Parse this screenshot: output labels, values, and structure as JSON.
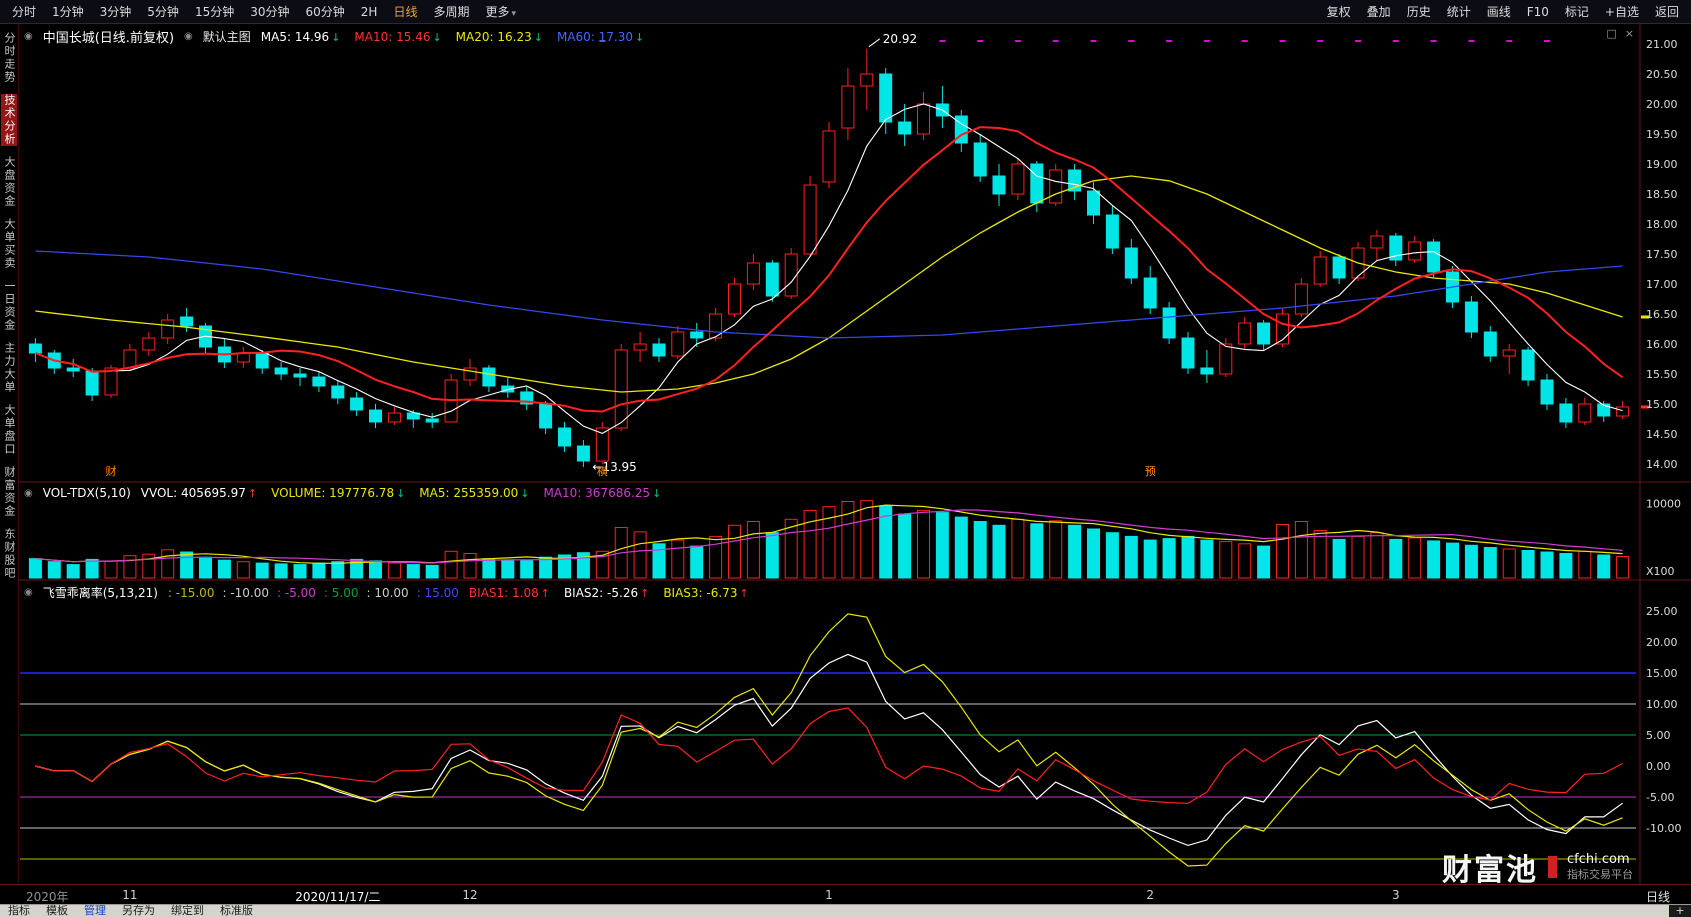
{
  "topbar": {
    "left_items": [
      "分时",
      "1分钟",
      "3分钟",
      "5分钟",
      "15分钟",
      "30分钟",
      "60分钟",
      "2H",
      "日线",
      "多周期",
      "更多"
    ],
    "active_item": "日线",
    "chevron_item": "更多",
    "right_items": [
      "复权",
      "叠加",
      "历史",
      "统计",
      "画线",
      "F10",
      "标记",
      "+自选",
      "返回"
    ]
  },
  "sidebar": {
    "items": [
      "分时走势",
      "技术分析",
      "大盘资金",
      "大单买卖",
      "一日资金",
      "主力大单",
      "大单盘口",
      "财富资金",
      "东财股吧"
    ],
    "active": "技术分析"
  },
  "main_header": {
    "title": "中国长城(日线.前复权)",
    "layout_label": "默认主图",
    "ma_labels": [
      {
        "text": "MA5: 14.96",
        "arrow": "↓",
        "color": "#ffffff",
        "arrow_color": "#00c878"
      },
      {
        "text": "MA10: 15.46",
        "arrow": "↓",
        "color": "#ff3232",
        "arrow_color": "#00c878"
      },
      {
        "text": "MA20: 16.23",
        "arrow": "↓",
        "color": "#e8e800",
        "arrow_color": "#00c878"
      },
      {
        "text": "MA60: 17.30",
        "arrow": "↓",
        "color": "#4468ff",
        "arrow_color": "#00c878"
      }
    ]
  },
  "vol_header": {
    "indicator": "VOL-TDX(5,10)",
    "fields": [
      {
        "text": "VVOL: 405695.97",
        "arrow": "↑",
        "color": "#ffffff",
        "arrow_color": "#ff3232"
      },
      {
        "text": "VOLUME: 197776.78",
        "arrow": "↓",
        "color": "#e8e800",
        "arrow_color": "#00c878"
      },
      {
        "text": "MA5: 255359.00",
        "arrow": "↓",
        "color": "#e8e800",
        "arrow_color": "#00c878"
      },
      {
        "text": "MA10: 367686.25",
        "arrow": "↓",
        "color": "#d23cd2",
        "arrow_color": "#00c878"
      }
    ]
  },
  "bias_header": {
    "indicator": "飞雪乖离率(5,13,21)",
    "ref_values": [
      {
        "text": ": -15.00",
        "color": "#bdbd00"
      },
      {
        "text": ": -10.00",
        "color": "#cccccc"
      },
      {
        "text": ": -5.00",
        "color": "#d23cd2"
      },
      {
        "text": ": 5.00",
        "color": "#00a040"
      },
      {
        "text": ": 10.00",
        "color": "#cccccc"
      },
      {
        "text": ": 15.00",
        "color": "#4444ff"
      }
    ],
    "fields": [
      {
        "text": "BIAS1: 1.08",
        "arrow": "↑",
        "color": "#ff3232",
        "arrow_color": "#ff3232"
      },
      {
        "text": "BIAS2: -5.26",
        "arrow": "↑",
        "color": "#ffffff",
        "arrow_color": "#ff3232"
      },
      {
        "text": "BIAS3: -6.73",
        "arrow": "↑",
        "color": "#e8e800",
        "arrow_color": "#ff3232"
      }
    ]
  },
  "pane_icons": [
    {
      "name": "popout-icon",
      "glyph": "□"
    },
    {
      "name": "close-icon",
      "glyph": "×"
    }
  ],
  "time_axis": {
    "year": "2020年",
    "selected": {
      "label": "2020/11/17/二",
      "idx": 16
    },
    "months": [
      {
        "label": "11",
        "idx": 5
      },
      {
        "label": "12",
        "idx": 23
      },
      {
        "label": "1",
        "idx": 42
      },
      {
        "label": "2",
        "idx": 59
      },
      {
        "label": "3",
        "idx": 72
      }
    ],
    "period": "日线"
  },
  "bottom_bar": {
    "items": [
      "指标",
      "模板",
      "管理",
      "另存为",
      "绑定到",
      "标准版"
    ],
    "active": "管理",
    "corner": "+"
  },
  "watermark": {
    "logo": "财富池",
    "domain": "cfchi.com",
    "tagline": "指标交易平台"
  },
  "colors": {
    "bg": "#000000",
    "up": "#ff2020",
    "down": "#00e6e6",
    "ma5": "#ffffff",
    "ma10": "#ff2020",
    "ma20": "#e8e800",
    "ma60": "#3348ee",
    "vol_ma5": "#e8e800",
    "vol_ma10": "#d23cd2",
    "separator": "#6e1414",
    "axis_text": "#dcdcdc",
    "signal_mark": "#e000e0",
    "tag_orange": "#ff8c00"
  },
  "chart_data": [
    {
      "type": "candlestick",
      "title": "中国长城 日线 前复权",
      "ylim": [
        14.0,
        21.0
      ],
      "y_ticks": [
        "21.00",
        "20.50",
        "20.00",
        "19.50",
        "19.00",
        "18.50",
        "18.00",
        "17.50",
        "17.00",
        "16.50",
        "16.00",
        "15.50",
        "15.00",
        "14.50",
        "14.00"
      ],
      "candles": [
        [
          16.0,
          16.1,
          15.7,
          15.85
        ],
        [
          15.85,
          15.9,
          15.5,
          15.6
        ],
        [
          15.6,
          15.75,
          15.45,
          15.55
        ],
        [
          15.55,
          15.6,
          15.05,
          15.15
        ],
        [
          15.15,
          15.65,
          15.1,
          15.6
        ],
        [
          15.6,
          16.0,
          15.55,
          15.9
        ],
        [
          15.9,
          16.2,
          15.8,
          16.1
        ],
        [
          16.1,
          16.5,
          16.0,
          16.4
        ],
        [
          16.45,
          16.6,
          16.2,
          16.3
        ],
        [
          16.3,
          16.35,
          15.85,
          15.95
        ],
        [
          15.95,
          16.1,
          15.6,
          15.7
        ],
        [
          15.7,
          15.95,
          15.6,
          15.85
        ],
        [
          15.85,
          15.9,
          15.5,
          15.6
        ],
        [
          15.6,
          15.7,
          15.4,
          15.5
        ],
        [
          15.5,
          15.6,
          15.3,
          15.45
        ],
        [
          15.45,
          15.55,
          15.2,
          15.3
        ],
        [
          15.3,
          15.4,
          15.0,
          15.1
        ],
        [
          15.1,
          15.2,
          14.8,
          14.9
        ],
        [
          14.9,
          15.0,
          14.6,
          14.7
        ],
        [
          14.7,
          14.95,
          14.65,
          14.85
        ],
        [
          14.85,
          14.9,
          14.6,
          14.75
        ],
        [
          14.75,
          14.85,
          14.6,
          14.7
        ],
        [
          14.7,
          15.5,
          14.7,
          15.4
        ],
        [
          15.4,
          15.75,
          15.3,
          15.6
        ],
        [
          15.6,
          15.65,
          15.2,
          15.3
        ],
        [
          15.3,
          15.45,
          15.1,
          15.2
        ],
        [
          15.2,
          15.3,
          14.9,
          15.0
        ],
        [
          15.0,
          15.05,
          14.5,
          14.6
        ],
        [
          14.6,
          14.7,
          14.2,
          14.3
        ],
        [
          14.3,
          14.4,
          13.95,
          14.05
        ],
        [
          14.05,
          14.7,
          14.0,
          14.6
        ],
        [
          14.6,
          16.0,
          14.55,
          15.9
        ],
        [
          15.9,
          16.2,
          15.7,
          16.0
        ],
        [
          16.0,
          16.1,
          15.7,
          15.8
        ],
        [
          15.8,
          16.3,
          15.75,
          16.2
        ],
        [
          16.2,
          16.35,
          15.95,
          16.1
        ],
        [
          16.1,
          16.6,
          16.05,
          16.5
        ],
        [
          16.5,
          17.1,
          16.45,
          17.0
        ],
        [
          17.0,
          17.5,
          16.9,
          17.35
        ],
        [
          17.35,
          17.4,
          16.7,
          16.8
        ],
        [
          16.8,
          17.6,
          16.75,
          17.5
        ],
        [
          17.5,
          18.8,
          17.45,
          18.65
        ],
        [
          18.7,
          19.7,
          18.6,
          19.55
        ],
        [
          19.6,
          20.6,
          19.4,
          20.3
        ],
        [
          20.3,
          20.92,
          19.9,
          20.5
        ],
        [
          20.5,
          20.6,
          19.5,
          19.7
        ],
        [
          19.7,
          20.0,
          19.3,
          19.5
        ],
        [
          19.5,
          20.2,
          19.4,
          20.0
        ],
        [
          20.0,
          20.3,
          19.6,
          19.8
        ],
        [
          19.8,
          19.9,
          19.2,
          19.35
        ],
        [
          19.35,
          19.5,
          18.7,
          18.8
        ],
        [
          18.8,
          19.0,
          18.3,
          18.5
        ],
        [
          18.5,
          19.1,
          18.4,
          19.0
        ],
        [
          19.0,
          19.05,
          18.2,
          18.35
        ],
        [
          18.35,
          19.0,
          18.3,
          18.9
        ],
        [
          18.9,
          19.0,
          18.4,
          18.55
        ],
        [
          18.55,
          18.7,
          18.0,
          18.15
        ],
        [
          18.15,
          18.3,
          17.5,
          17.6
        ],
        [
          17.6,
          17.75,
          17.0,
          17.1
        ],
        [
          17.1,
          17.3,
          16.5,
          16.6
        ],
        [
          16.6,
          16.7,
          16.0,
          16.1
        ],
        [
          16.1,
          16.2,
          15.5,
          15.6
        ],
        [
          15.6,
          15.9,
          15.35,
          15.5
        ],
        [
          15.5,
          16.1,
          15.45,
          16.0
        ],
        [
          16.0,
          16.45,
          15.9,
          16.35
        ],
        [
          16.35,
          16.4,
          15.9,
          16.0
        ],
        [
          16.0,
          16.6,
          15.95,
          16.5
        ],
        [
          16.5,
          17.1,
          16.45,
          17.0
        ],
        [
          17.0,
          17.55,
          16.95,
          17.45
        ],
        [
          17.45,
          17.5,
          17.0,
          17.1
        ],
        [
          17.1,
          17.7,
          17.05,
          17.6
        ],
        [
          17.6,
          17.9,
          17.4,
          17.8
        ],
        [
          17.8,
          17.85,
          17.3,
          17.4
        ],
        [
          17.4,
          17.8,
          17.35,
          17.7
        ],
        [
          17.7,
          17.75,
          17.1,
          17.2
        ],
        [
          17.2,
          17.3,
          16.6,
          16.7
        ],
        [
          16.7,
          16.8,
          16.1,
          16.2
        ],
        [
          16.2,
          16.3,
          15.7,
          15.8
        ],
        [
          15.8,
          16.0,
          15.5,
          15.9
        ],
        [
          15.9,
          15.95,
          15.3,
          15.4
        ],
        [
          15.4,
          15.5,
          14.9,
          15.0
        ],
        [
          15.0,
          15.1,
          14.6,
          14.7
        ],
        [
          14.7,
          15.1,
          14.65,
          15.0
        ],
        [
          15.0,
          15.05,
          14.7,
          14.8
        ],
        [
          14.8,
          15.05,
          14.75,
          14.95
        ]
      ],
      "ma20_waypoints": [
        [
          0,
          16.55
        ],
        [
          4,
          16.4
        ],
        [
          8,
          16.28
        ],
        [
          12,
          16.12
        ],
        [
          16,
          15.95
        ],
        [
          20,
          15.7
        ],
        [
          24,
          15.5
        ],
        [
          28,
          15.3
        ],
        [
          31,
          15.2
        ],
        [
          34,
          15.25
        ],
        [
          36,
          15.35
        ],
        [
          38,
          15.5
        ],
        [
          40,
          15.75
        ],
        [
          42,
          16.1
        ],
        [
          44,
          16.55
        ],
        [
          46,
          17.0
        ],
        [
          48,
          17.45
        ],
        [
          50,
          17.85
        ],
        [
          52,
          18.2
        ],
        [
          54,
          18.5
        ],
        [
          56,
          18.72
        ],
        [
          58,
          18.8
        ],
        [
          60,
          18.72
        ],
        [
          62,
          18.5
        ],
        [
          64,
          18.2
        ],
        [
          66,
          17.9
        ],
        [
          68,
          17.6
        ],
        [
          70,
          17.35
        ],
        [
          72,
          17.2
        ],
        [
          74,
          17.1
        ],
        [
          76,
          17.05
        ],
        [
          78,
          17.0
        ],
        [
          80,
          16.85
        ],
        [
          82,
          16.65
        ],
        [
          84,
          16.45
        ]
      ],
      "ma60_waypoints": [
        [
          0,
          17.55
        ],
        [
          6,
          17.45
        ],
        [
          12,
          17.25
        ],
        [
          18,
          16.95
        ],
        [
          24,
          16.65
        ],
        [
          30,
          16.4
        ],
        [
          36,
          16.2
        ],
        [
          42,
          16.1
        ],
        [
          48,
          16.15
        ],
        [
          54,
          16.3
        ],
        [
          60,
          16.45
        ],
        [
          66,
          16.6
        ],
        [
          72,
          16.8
        ],
        [
          76,
          17.0
        ],
        [
          80,
          17.2
        ],
        [
          84,
          17.3
        ]
      ],
      "annotations": [
        {
          "text": "20.92",
          "idx": 44,
          "price": 20.92,
          "pointer": true
        },
        {
          "text": "←13.95",
          "idx": 29,
          "price": 13.95,
          "pointer": false
        }
      ],
      "event_tags": [
        {
          "text": "财",
          "idx": 4
        },
        {
          "text": "横",
          "idx": 30
        },
        {
          "text": "预",
          "idx": 59
        }
      ],
      "signal_marks_idx": [
        30,
        48,
        50,
        52,
        54,
        56,
        58,
        60,
        62,
        64,
        66,
        68,
        70,
        72,
        74,
        76,
        78,
        80
      ],
      "axis_marks": [
        {
          "price": 14.95,
          "color": "#ff2e2e"
        },
        {
          "price": 16.45,
          "color": "#e8e800"
        }
      ]
    },
    {
      "type": "bar",
      "name": "volume",
      "unit_label": "X100",
      "y_tick": "10000",
      "ymax": 10500,
      "values": [
        2600,
        2200,
        1800,
        2500,
        2300,
        3000,
        3200,
        3800,
        3500,
        2800,
        2400,
        2200,
        2000,
        1900,
        1800,
        2000,
        2200,
        2500,
        2300,
        2000,
        1800,
        1700,
        3600,
        3300,
        2600,
        2300,
        2400,
        2800,
        3100,
        3400,
        3600,
        6800,
        6200,
        4600,
        5100,
        4300,
        5600,
        7100,
        7600,
        6100,
        7900,
        9100,
        9600,
        10300,
        10400,
        9700,
        8600,
        9100,
        8800,
        8200,
        7600,
        7100,
        7900,
        7300,
        7700,
        7100,
        6600,
        6100,
        5600,
        5100,
        5300,
        5600,
        5100,
        4900,
        4600,
        4300,
        7200,
        7600,
        6400,
        5200,
        5600,
        6100,
        5200,
        5400,
        5000,
        4700,
        4400,
        4100,
        3900,
        3700,
        3500,
        3300,
        3600,
        3100,
        2900
      ]
    },
    {
      "type": "line",
      "name": "bias",
      "periods": [
        5,
        13,
        21
      ],
      "line_colors": {
        "bias1": "#ff2020",
        "bias2": "#ffffff",
        "bias3": "#e8e800"
      },
      "ref_lines": [
        {
          "v": 15,
          "color": "#2828ff",
          "w": 1.6
        },
        {
          "v": 10,
          "color": "#c8c8c8",
          "w": 1
        },
        {
          "v": 5,
          "color": "#00a040",
          "w": 1
        },
        {
          "v": -5,
          "color": "#c832c8",
          "w": 1
        },
        {
          "v": -10,
          "color": "#c8c8c8",
          "w": 1
        },
        {
          "v": -15,
          "color": "#bdbd00",
          "w": 1
        }
      ],
      "y_ticks": [
        "25.00",
        "20.00",
        "15.00",
        "10.00",
        "5.00",
        "0.00",
        "-5.00",
        "-10.00"
      ],
      "y_tick_values": [
        25,
        20,
        15,
        10,
        5,
        0,
        -5,
        -10
      ],
      "ylim": [
        -19,
        27
      ]
    }
  ]
}
